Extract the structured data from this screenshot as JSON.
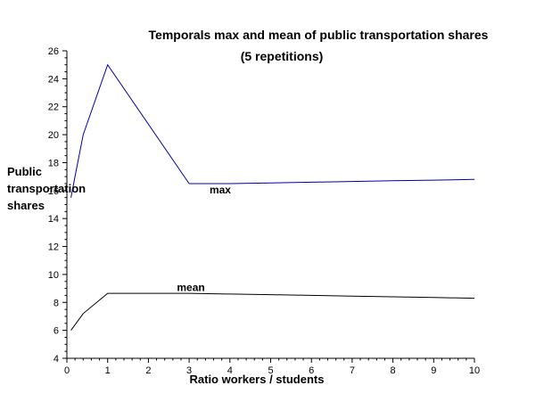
{
  "chart_data": {
    "type": "line",
    "title": "Temporals max and mean of public transportation shares",
    "subtitle": "(5 repetitions)",
    "xlabel": "Ratio workers / students",
    "ylabel_lines": [
      "Public",
      "transportation",
      "shares"
    ],
    "xlim": [
      0,
      10
    ],
    "ylim": [
      4,
      26
    ],
    "xticks": [
      "0",
      "1",
      "2",
      "3",
      "4",
      "5",
      "6",
      "7",
      "8",
      "9",
      "10"
    ],
    "yticks": [
      "4",
      "6",
      "8",
      "10",
      "12",
      "14",
      "16",
      "18",
      "20",
      "22",
      "24",
      "26"
    ],
    "grid": false,
    "series": [
      {
        "name": "max",
        "color": "#0000aa",
        "x": [
          0.1,
          0.2,
          0.4,
          1.0,
          3.0,
          4.0,
          5.0,
          6.0,
          7.0,
          8.0,
          9.0,
          10.0
        ],
        "y": [
          15.5,
          17.0,
          20.0,
          25.0,
          16.5,
          16.5,
          16.55,
          16.6,
          16.65,
          16.7,
          16.75,
          16.8
        ]
      },
      {
        "name": "mean",
        "color": "#000000",
        "x": [
          0.1,
          0.4,
          1.0,
          2.0,
          3.0,
          4.0,
          5.0,
          6.0,
          7.0,
          8.0,
          9.0,
          10.0
        ],
        "y": [
          6.0,
          7.2,
          8.65,
          8.65,
          8.65,
          8.6,
          8.55,
          8.5,
          8.45,
          8.4,
          8.35,
          8.3
        ]
      }
    ],
    "annotations": [
      {
        "text": "max",
        "x": 3.5,
        "y": 15.8
      },
      {
        "text": "mean",
        "x": 2.7,
        "y": 8.8
      }
    ]
  }
}
